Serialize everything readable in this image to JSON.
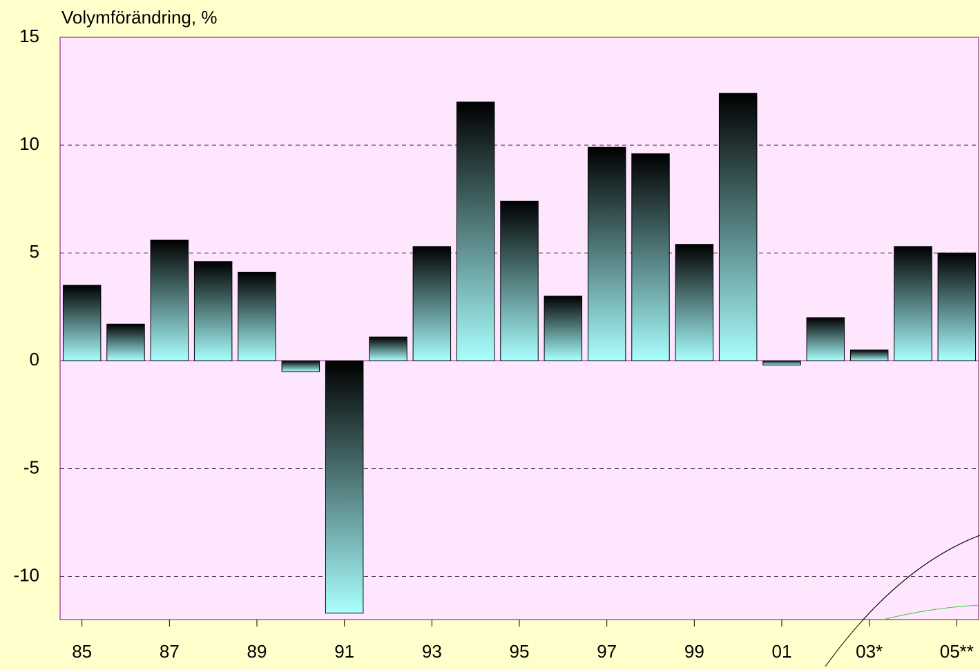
{
  "chart_data": {
    "type": "bar",
    "title": "Volymförändring, %",
    "categories": [
      "85",
      null,
      "87",
      null,
      "89",
      null,
      "91",
      null,
      "93",
      null,
      "95",
      null,
      "97",
      null,
      "99",
      null,
      "01",
      null,
      "03*",
      null,
      "05**"
    ],
    "values": [
      3.5,
      1.7,
      5.6,
      4.6,
      4.1,
      -0.5,
      -11.7,
      1.1,
      5.3,
      12.0,
      7.4,
      3.0,
      9.9,
      9.6,
      5.4,
      12.4,
      -0.2,
      2.0,
      0.5,
      5.3,
      5.0
    ],
    "color": "#aaffff",
    "ylim": [
      -12,
      15
    ],
    "yticks": [
      -10,
      -5,
      0,
      5,
      10,
      15
    ],
    "grid": true
  }
}
